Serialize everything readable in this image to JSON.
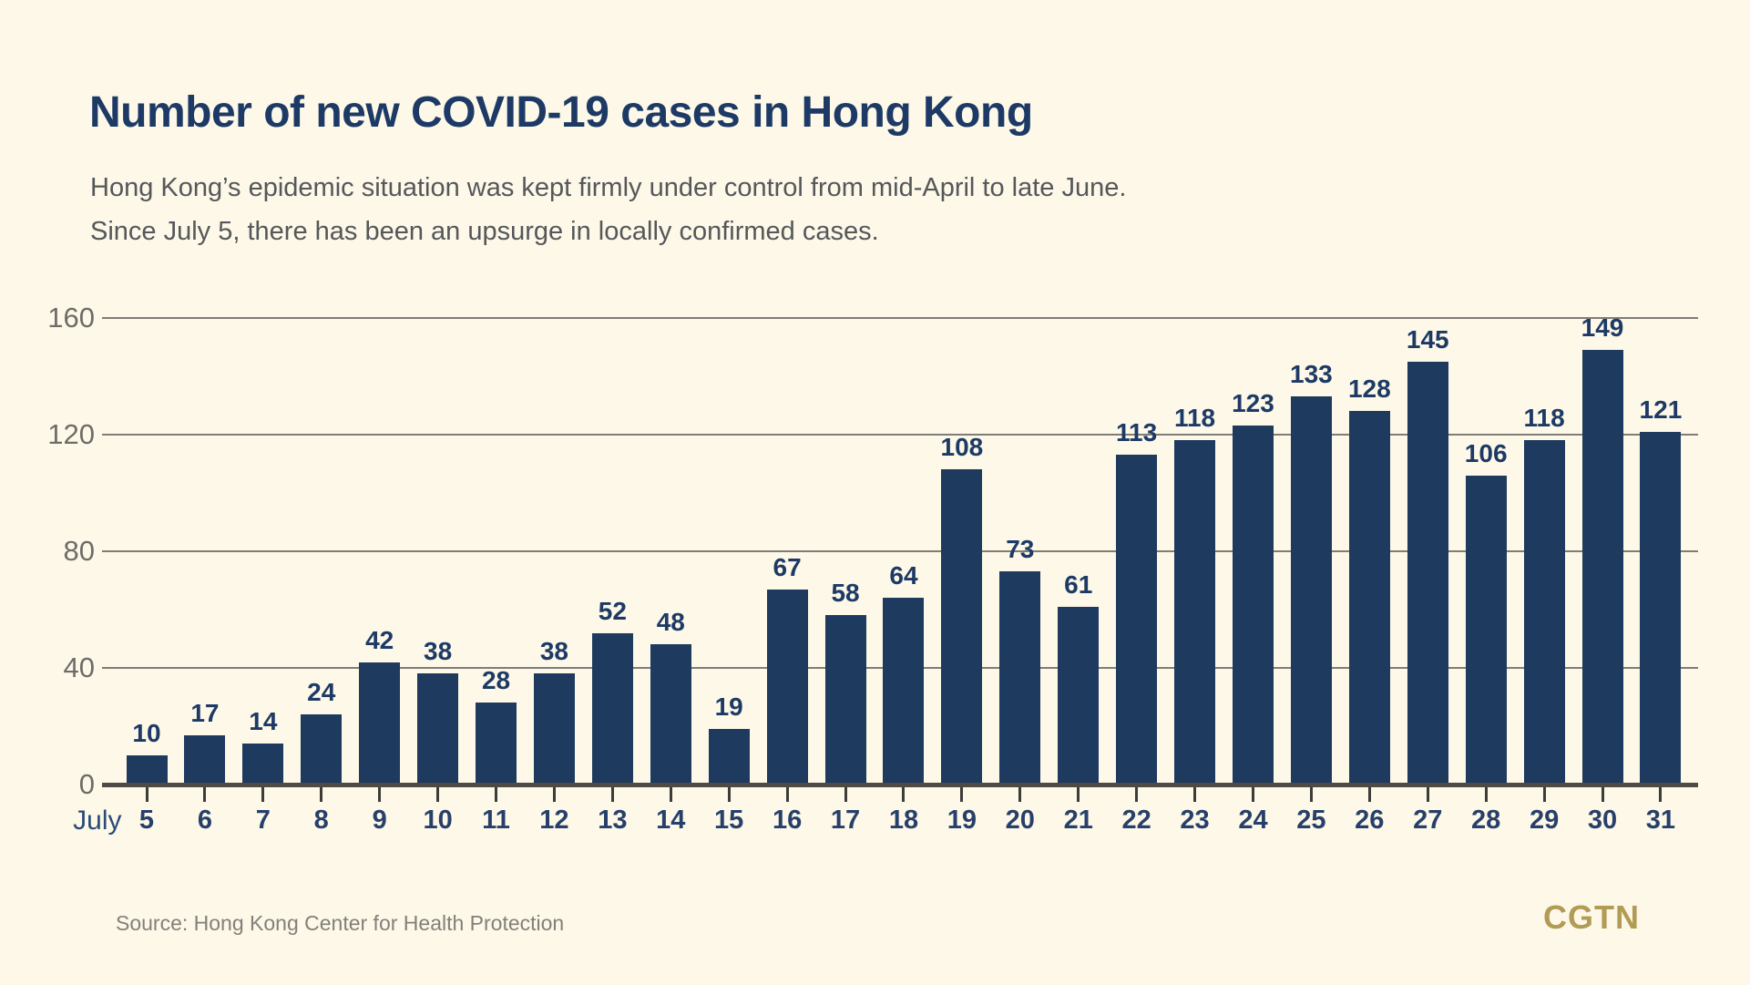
{
  "page": {
    "background": "#fdf8e7"
  },
  "header": {
    "title": "Number of new COVID-19 cases in Hong Kong",
    "subtitle_line1": "Hong Kong’s epidemic situation was kept firmly under control from mid-April to late June.",
    "subtitle_line2": "Since July 5, there has been an upsurge in locally confirmed cases."
  },
  "footer": {
    "source": "Source: Hong Kong Center for Health Protection",
    "logo": "CGTN"
  },
  "chart_data": {
    "type": "bar",
    "title": "Number of new COVID-19 cases in Hong Kong",
    "x_prefix_label": "July",
    "categories": [
      "5",
      "6",
      "7",
      "8",
      "9",
      "10",
      "11",
      "12",
      "13",
      "14",
      "15",
      "16",
      "17",
      "18",
      "19",
      "20",
      "21",
      "22",
      "23",
      "24",
      "25",
      "26",
      "27",
      "28",
      "29",
      "30",
      "31"
    ],
    "values": [
      10,
      17,
      14,
      24,
      42,
      38,
      28,
      38,
      52,
      48,
      19,
      67,
      58,
      64,
      108,
      73,
      61,
      113,
      118,
      123,
      133,
      128,
      145,
      106,
      118,
      149,
      121
    ],
    "y_ticks": [
      0,
      40,
      80,
      120,
      160
    ],
    "ylim": [
      0,
      160
    ],
    "grid": true,
    "legend": "none",
    "xlabel": "",
    "ylabel": "",
    "bar_color": "#1e3a5f",
    "value_label_color": "#1d3a66",
    "x_label_color": "#27406b",
    "y_label_color": "#6e6c67",
    "gridline_color": "#7f7d77",
    "baseline_color": "#4e4a44",
    "tick_color": "#3c3c3a"
  }
}
